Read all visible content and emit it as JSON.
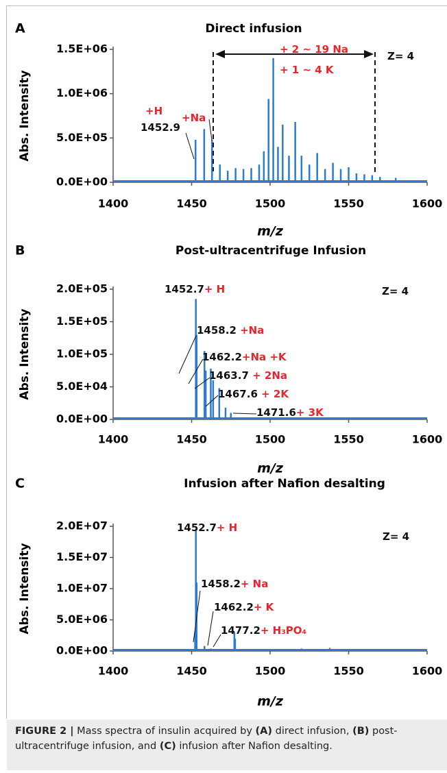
{
  "chart_data": [
    {
      "type": "stem",
      "panel": "A",
      "title": "Direct infusion",
      "ylabel": "Abs. Intensity",
      "xlabel": "m/z",
      "color": "#2b7bd3",
      "x": [
        1452.5,
        1458,
        1463,
        1468,
        1473,
        1478,
        1483,
        1488,
        1493,
        1496,
        1499,
        1502,
        1505,
        1508,
        1512,
        1516,
        1520,
        1525,
        1530,
        1535,
        1540,
        1545,
        1550,
        1555,
        1560,
        1565,
        1570,
        1580
      ],
      "values": [
        480000,
        600000,
        480000,
        200000,
        130000,
        160000,
        150000,
        160000,
        200000,
        350000,
        940000,
        1400000,
        400000,
        650000,
        300000,
        680000,
        300000,
        200000,
        330000,
        150000,
        220000,
        150000,
        170000,
        100000,
        90000,
        80000,
        60000,
        50000
      ],
      "xlim": [
        1400,
        1600
      ],
      "xticks": [
        1400,
        1450,
        1500,
        1550,
        1600
      ],
      "ylim": [
        0,
        1500000
      ],
      "yticks": [
        {
          "value": 0,
          "label": "0.0E+00"
        },
        {
          "value": 500000,
          "label": "5.0E+05"
        },
        {
          "value": 1000000,
          "label": "1.0E+06"
        },
        {
          "value": 1500000,
          "label": "1.5E+06"
        }
      ],
      "label_color": "#111111",
      "note_color": "#e8252b",
      "annotations": [
        {
          "note": "+H"
        },
        {
          "note": "+Na"
        },
        {
          "label": "1452.9"
        },
        {
          "note": "+ 2 ~ 19 Na"
        },
        {
          "note": "+ 1 ~ 4 K"
        },
        {
          "label": "Z= 4"
        }
      ]
    },
    {
      "type": "stem",
      "panel": "B",
      "title": "Post-ultracentrifuge Infusion",
      "ylabel": "Abs. Intensity",
      "xlabel": "m/z",
      "color": "#2b7bd3",
      "x": [
        1452.7,
        1453.2,
        1458.2,
        1459,
        1462.2,
        1463.7,
        1467.6,
        1471.6,
        1475
      ],
      "values": [
        185000,
        130000,
        105000,
        75000,
        78000,
        60000,
        48000,
        18000,
        10000
      ],
      "xlim": [
        1400,
        1600
      ],
      "xticks": [
        1400,
        1450,
        1500,
        1550,
        1600
      ],
      "ylim": [
        0,
        200000
      ],
      "yticks": [
        {
          "value": 0,
          "label": "0.0E+00"
        },
        {
          "value": 50000,
          "label": "5.0E+04"
        },
        {
          "value": 100000,
          "label": "1.0E+05"
        },
        {
          "value": 150000,
          "label": "1.5E+05"
        },
        {
          "value": 200000,
          "label": "2.0E+05"
        }
      ],
      "label_color": "#111111",
      "note_color": "#e8252b",
      "annotations": [
        {
          "label": "1452.7",
          "note": "+ H"
        },
        {
          "label": "1458.2",
          "note": " +Na"
        },
        {
          "label": "1462.2",
          "note": "+Na +K"
        },
        {
          "label": "1463.7",
          "note": "  + 2Na"
        },
        {
          "label": "1467.6",
          "note": "  + 2K"
        },
        {
          "label": "1471.6",
          "note": "+ 3K"
        },
        {
          "label": "Z= 4"
        }
      ]
    },
    {
      "type": "stem",
      "panel": "C",
      "title": "Infusion after Nafion desalting",
      "ylabel": "Abs. Intensity",
      "xlabel": "m/z",
      "color": "#2b7bd3",
      "x": [
        1452.2,
        1452.7,
        1453.2,
        1458.2,
        1462.2,
        1477.2,
        1477.7,
        1520,
        1538
      ],
      "values": [
        3000000,
        19500000,
        11000000,
        800000,
        400000,
        3000000,
        2000000,
        400000,
        500000
      ],
      "xlim": [
        1400,
        1600
      ],
      "xticks": [
        1400,
        1450,
        1500,
        1550,
        1600
      ],
      "ylim": [
        0,
        20000000
      ],
      "yticks": [
        {
          "value": 0,
          "label": "0.0E+00"
        },
        {
          "value": 5000000,
          "label": "5.0E+06"
        },
        {
          "value": 10000000,
          "label": "1.0E+07"
        },
        {
          "value": 15000000,
          "label": "1.5E+07"
        },
        {
          "value": 20000000,
          "label": "2.0E+07"
        }
      ],
      "label_color": "#111111",
      "note_color": "#e8252b",
      "annotations": [
        {
          "label": "1452.7",
          "note": "+ H"
        },
        {
          "label": "1458.2",
          "note": "+ Na"
        },
        {
          "label": "1462.2",
          "note": "+ K"
        },
        {
          "label": "1477.2",
          "note": "+ H₃PO₄"
        },
        {
          "label": "Z= 4"
        }
      ]
    }
  ],
  "caption": {
    "lead": "FIGURE 2 |",
    "parts": [
      " Mass spectra of insulin acquired by ",
      "(A)",
      " direct infusion, ",
      "(B)",
      " post-ultracentrifuge infusion, and ",
      "(C)",
      " infusion after Nafion desalting."
    ]
  }
}
